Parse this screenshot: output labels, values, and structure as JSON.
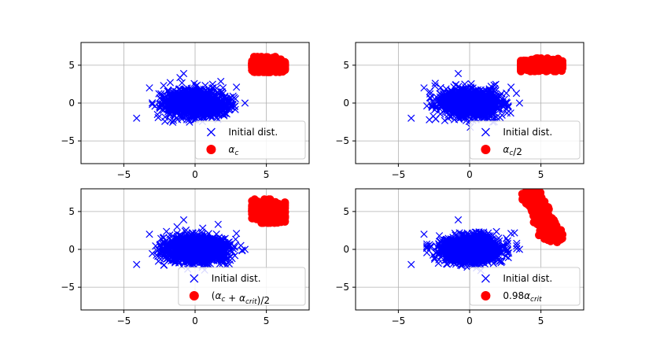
{
  "chart_data": [
    {
      "type": "scatter",
      "xlim": [
        -8,
        8
      ],
      "ylim": [
        -8,
        8
      ],
      "xticks": [
        -5,
        0,
        5
      ],
      "yticks": [
        -5,
        0,
        5
      ],
      "grid": true,
      "legend_placement": "bottom-right",
      "series": [
        {
          "name": "Initial dist.",
          "marker": "x",
          "color": "#0000ff",
          "distribution": {
            "center": [
              0,
              0
            ],
            "std": [
              1.05,
              0.85
            ],
            "extent_x": [
              -3,
              3.3
            ],
            "extent_y": [
              -3.5,
              3.5
            ]
          },
          "outliers": [
            [
              -4.1,
              -2.0
            ],
            [
              -3.2,
              2.0
            ],
            [
              -0.8,
              3.9
            ],
            [
              3.5,
              0.0
            ],
            [
              2.9,
              2.1
            ]
          ]
        },
        {
          "name": "α_c",
          "marker": "o",
          "color": "#ff0000",
          "distribution": {
            "center": [
              5.1,
              5.0
            ],
            "std": [
              0.55,
              0.42
            ],
            "extent_x": [
              4.0,
              6.3
            ],
            "extent_y": [
              4.1,
              6.1
            ]
          }
        }
      ]
    },
    {
      "type": "scatter",
      "xlim": [
        -8,
        8
      ],
      "ylim": [
        -8,
        8
      ],
      "xticks": [
        -5,
        0,
        5
      ],
      "yticks": [
        -5,
        0,
        5
      ],
      "grid": true,
      "legend_placement": "bottom-right",
      "series": [
        {
          "name": "Initial dist.",
          "marker": "x",
          "color": "#0000ff",
          "distribution": {
            "center": [
              0,
              0
            ],
            "std": [
              1.05,
              0.85
            ],
            "extent_x": [
              -3,
              3.3
            ],
            "extent_y": [
              -3.5,
              3.5
            ]
          },
          "outliers": [
            [
              -4.1,
              -2.0
            ],
            [
              -3.2,
              2.0
            ],
            [
              -0.8,
              3.9
            ],
            [
              3.5,
              0.0
            ],
            [
              2.9,
              2.1
            ]
          ]
        },
        {
          "name": "α_c/2",
          "marker": "o",
          "color": "#ff0000",
          "distribution": {
            "center": [
              4.9,
              5.0
            ],
            "std": [
              0.7,
              0.35
            ],
            "extent_x": [
              3.6,
              6.5
            ],
            "extent_y": [
              4.2,
              5.9
            ]
          }
        }
      ]
    },
    {
      "type": "scatter",
      "xlim": [
        -8,
        8
      ],
      "ylim": [
        -8,
        8
      ],
      "xticks": [
        -5,
        0,
        5
      ],
      "yticks": [
        -5,
        0,
        5
      ],
      "grid": true,
      "legend_placement": "bottom-right",
      "series": [
        {
          "name": "Initial dist.",
          "marker": "x",
          "color": "#0000ff",
          "distribution": {
            "center": [
              0,
              0
            ],
            "std": [
              1.05,
              0.85
            ],
            "extent_x": [
              -3,
              3.3
            ],
            "extent_y": [
              -3.5,
              3.5
            ]
          },
          "outliers": [
            [
              -4.1,
              -2.0
            ],
            [
              -3.2,
              2.0
            ],
            [
              -0.8,
              3.9
            ],
            [
              3.5,
              0.0
            ],
            [
              2.9,
              2.1
            ]
          ]
        },
        {
          "name": "(α_c + α_crit)/2",
          "marker": "o",
          "color": "#ff0000",
          "distribution": {
            "center": [
              5.1,
              5.0
            ],
            "std": [
              0.55,
              0.6
            ],
            "extent_x": [
              4.0,
              6.3
            ],
            "extent_y": [
              3.5,
              6.6
            ]
          }
        }
      ]
    },
    {
      "type": "scatter",
      "xlim": [
        -8,
        8
      ],
      "ylim": [
        -8,
        8
      ],
      "xticks": [
        -5,
        0,
        5
      ],
      "yticks": [
        -5,
        0,
        5
      ],
      "grid": true,
      "legend_placement": "bottom-right",
      "series": [
        {
          "name": "Initial dist.",
          "marker": "x",
          "color": "#0000ff",
          "distribution": {
            "center": [
              0,
              0
            ],
            "std": [
              1.05,
              0.85
            ],
            "extent_x": [
              -3,
              3.3
            ],
            "extent_y": [
              -3.5,
              3.5
            ]
          },
          "outliers": [
            [
              -4.1,
              -2.0
            ],
            [
              -3.2,
              2.0
            ],
            [
              -0.8,
              3.9
            ],
            [
              3.5,
              0.0
            ],
            [
              2.9,
              2.1
            ]
          ]
        },
        {
          "name": "0.98α_crit",
          "marker": "o",
          "color": "#ff0000",
          "distribution": {
            "line_from": [
              4.2,
              7.6
            ],
            "line_to": [
              6.0,
              1.3
            ],
            "width": 0.55
          },
          "note": "elongated band from about (4.2, 7.6) to (6.0, 1.3)"
        }
      ]
    }
  ]
}
